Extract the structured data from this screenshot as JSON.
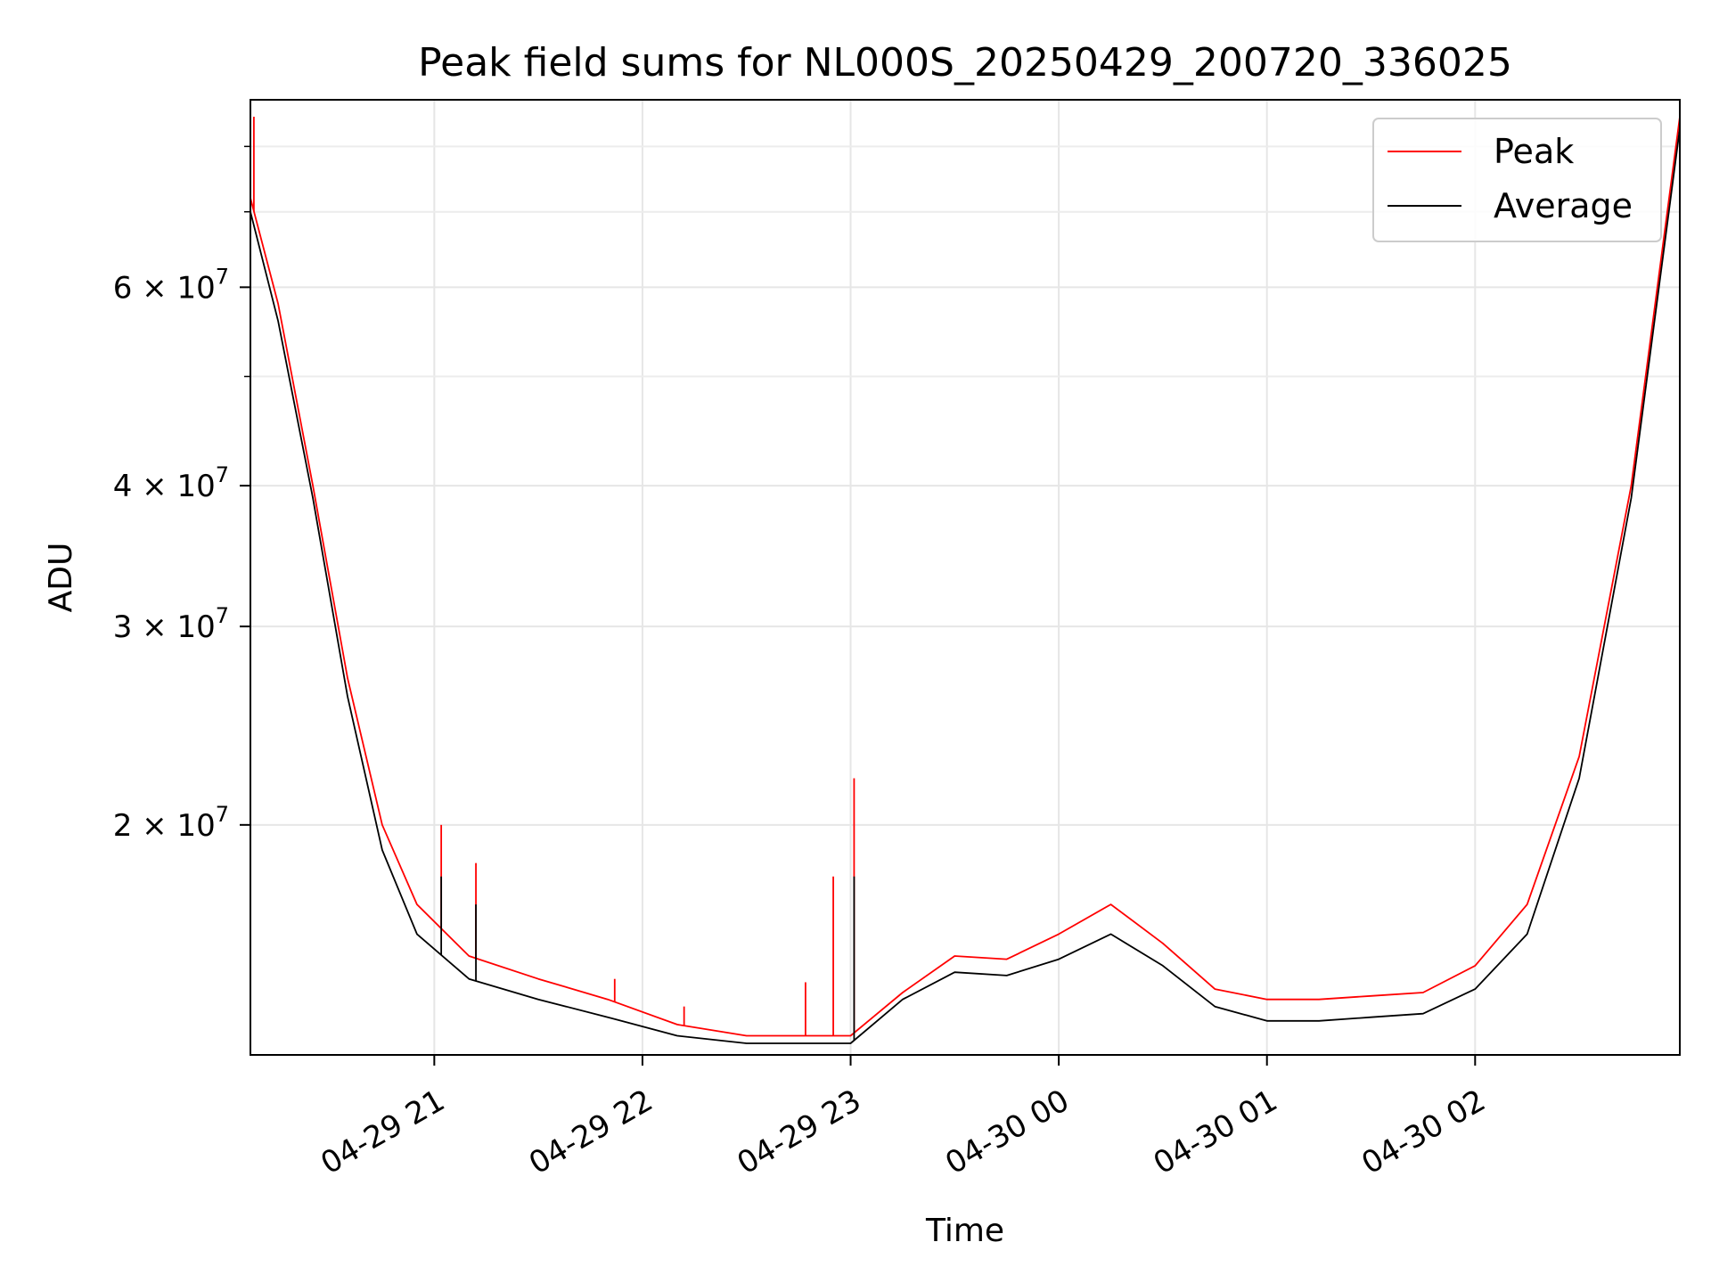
{
  "chart_data": {
    "type": "line",
    "title": "Peak field sums for NL000S_20250429_200720_336025",
    "xlabel": "Time",
    "ylabel": "ADU",
    "x_scale": "time",
    "y_scale": "log",
    "xlim": [
      "2025-04-29 20:07",
      "2025-04-30 02:59"
    ],
    "ylim": [
      12500000,
      88000000
    ],
    "x_ticks": [
      {
        "value": "2025-04-29 21:00",
        "label": "04-29 21"
      },
      {
        "value": "2025-04-29 22:00",
        "label": "04-29 22"
      },
      {
        "value": "2025-04-29 23:00",
        "label": "04-29 23"
      },
      {
        "value": "2025-04-30 00:00",
        "label": "04-30 00"
      },
      {
        "value": "2025-04-30 01:00",
        "label": "04-30 01"
      },
      {
        "value": "2025-04-30 02:00",
        "label": "04-30 02"
      }
    ],
    "y_ticks": [
      {
        "value": 20000000,
        "mantissa": "2",
        "exponent": "7"
      },
      {
        "value": 30000000,
        "mantissa": "3",
        "exponent": "7"
      },
      {
        "value": 40000000,
        "mantissa": "4",
        "exponent": "7"
      },
      {
        "value": 60000000,
        "mantissa": "6",
        "exponent": "7"
      }
    ],
    "y_minor_ticks": [
      50000000,
      70000000,
      80000000
    ],
    "grid": true,
    "legend_position": "top-right",
    "series": [
      {
        "name": "Peak",
        "color": "#ff0000",
        "x": [
          "2025-04-29 20:07",
          "2025-04-29 20:15",
          "2025-04-29 20:25",
          "2025-04-29 20:35",
          "2025-04-29 20:45",
          "2025-04-29 20:55",
          "2025-04-29 21:10",
          "2025-04-29 21:30",
          "2025-04-29 21:50",
          "2025-04-29 22:10",
          "2025-04-29 22:30",
          "2025-04-29 22:50",
          "2025-04-29 23:00",
          "2025-04-29 23:15",
          "2025-04-29 23:30",
          "2025-04-29 23:45",
          "2025-04-30 00:00",
          "2025-04-30 00:15",
          "2025-04-30 00:30",
          "2025-04-30 00:45",
          "2025-04-30 01:00",
          "2025-04-30 01:15",
          "2025-04-30 01:30",
          "2025-04-30 01:45",
          "2025-04-30 02:00",
          "2025-04-30 02:15",
          "2025-04-30 02:30",
          "2025-04-30 02:45",
          "2025-04-30 02:59"
        ],
        "values": [
          72000000,
          58000000,
          40000000,
          27000000,
          20000000,
          17000000,
          15300000,
          14600000,
          14000000,
          13300000,
          13000000,
          13000000,
          13000000,
          14200000,
          15300000,
          15200000,
          16000000,
          17000000,
          15700000,
          14300000,
          14000000,
          14000000,
          14100000,
          14200000,
          15000000,
          17000000,
          23000000,
          40000000,
          85000000
        ],
        "spikes": [
          {
            "x": "2025-04-29 20:08",
            "value": 85000000
          },
          {
            "x": "2025-04-29 21:02",
            "value": 20000000
          },
          {
            "x": "2025-04-29 21:12",
            "value": 18500000
          },
          {
            "x": "2025-04-29 21:52",
            "value": 14600000
          },
          {
            "x": "2025-04-29 22:12",
            "value": 13800000
          },
          {
            "x": "2025-04-29 22:47",
            "value": 14500000
          },
          {
            "x": "2025-04-29 22:55",
            "value": 18000000
          },
          {
            "x": "2025-04-29 23:01",
            "value": 22000000
          }
        ]
      },
      {
        "name": "Average",
        "color": "#000000",
        "x": [
          "2025-04-29 20:07",
          "2025-04-29 20:15",
          "2025-04-29 20:25",
          "2025-04-29 20:35",
          "2025-04-29 20:45",
          "2025-04-29 20:55",
          "2025-04-29 21:10",
          "2025-04-29 21:30",
          "2025-04-29 21:50",
          "2025-04-29 22:10",
          "2025-04-29 22:30",
          "2025-04-29 22:50",
          "2025-04-29 23:00",
          "2025-04-29 23:15",
          "2025-04-29 23:30",
          "2025-04-29 23:45",
          "2025-04-30 00:00",
          "2025-04-30 00:15",
          "2025-04-30 00:30",
          "2025-04-30 00:45",
          "2025-04-30 01:00",
          "2025-04-30 01:15",
          "2025-04-30 01:30",
          "2025-04-30 01:45",
          "2025-04-30 02:00",
          "2025-04-30 02:15",
          "2025-04-30 02:30",
          "2025-04-30 02:45",
          "2025-04-30 02:59"
        ],
        "values": [
          70000000,
          56000000,
          39000000,
          26000000,
          19000000,
          16000000,
          14600000,
          14000000,
          13500000,
          13000000,
          12800000,
          12800000,
          12800000,
          14000000,
          14800000,
          14700000,
          15200000,
          16000000,
          15000000,
          13800000,
          13400000,
          13400000,
          13500000,
          13600000,
          14300000,
          16000000,
          22000000,
          39000000,
          83000000
        ],
        "spikes": [
          {
            "x": "2025-04-29 21:02",
            "value": 18000000
          },
          {
            "x": "2025-04-29 21:12",
            "value": 17000000
          },
          {
            "x": "2025-04-29 23:01",
            "value": 18000000
          }
        ]
      }
    ]
  }
}
